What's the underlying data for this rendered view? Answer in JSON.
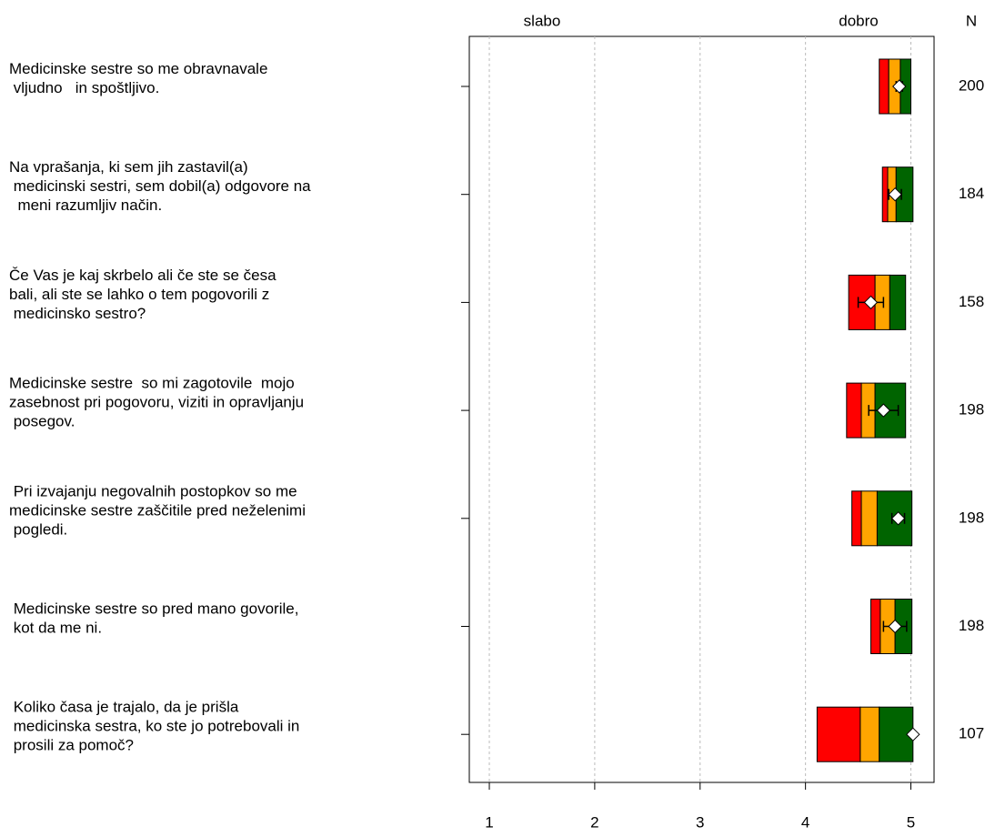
{
  "chart_data": {
    "type": "bar",
    "annotations": [
      "slabo",
      "dobro"
    ],
    "n_header": "N",
    "categories": [
      [
        "Medicinske sestre so me obravnavale",
        " vljudno   in spoštljivo."
      ],
      [
        "Na vprašanja, ki sem jih zastavil(a)",
        " medicinski sestri, sem dobil(a) odgovore na",
        "  meni razumljiv način."
      ],
      [
        "Če Vas je kaj skrbelo ali če ste se česa",
        "bali, ali ste se lahko o tem pogovorili z",
        " medicinsko sestro?"
      ],
      [
        "Medicinske sestre  so mi zagotovile  mojo",
        "zasebnost pri pogovoru, viziti in opravljanju",
        " posegov."
      ],
      [
        " Pri izvajanju negovalnih postopkov so me",
        "medicinske sestre zaščitile pred neželenimi",
        " pogledi."
      ],
      [
        " Medicinske sestre so pred mano govorile,",
        " kot da me ni."
      ],
      [
        " Koliko časa je trajalo, da je prišla",
        " medicinska sestra, ko ste jo potrebovali in",
        " prosili za pomoč?"
      ]
    ],
    "segment_colors": [
      "#ff0000",
      "#ffa500",
      "#006400"
    ],
    "boundaries": [
      [
        4.7,
        4.79,
        4.9,
        5.0
      ],
      [
        4.73,
        4.78,
        4.86,
        5.02
      ],
      [
        4.41,
        4.66,
        4.8,
        4.95
      ],
      [
        4.39,
        4.53,
        4.66,
        4.95
      ],
      [
        4.44,
        4.53,
        4.68,
        5.01
      ],
      [
        4.62,
        4.71,
        4.85,
        5.01
      ],
      [
        4.11,
        4.52,
        4.7,
        5.02
      ]
    ],
    "means": [
      4.89,
      4.85,
      4.62,
      4.74,
      4.88,
      4.85,
      5.02
    ],
    "errors": [
      0.03,
      0.06,
      0.12,
      0.14,
      0.06,
      0.11,
      0
    ],
    "n": [
      200,
      184,
      158,
      198,
      198,
      198,
      107
    ],
    "xlim": [
      0.81,
      5.22
    ],
    "xticks": [
      1,
      2,
      3,
      4,
      5
    ],
    "grid": true
  }
}
